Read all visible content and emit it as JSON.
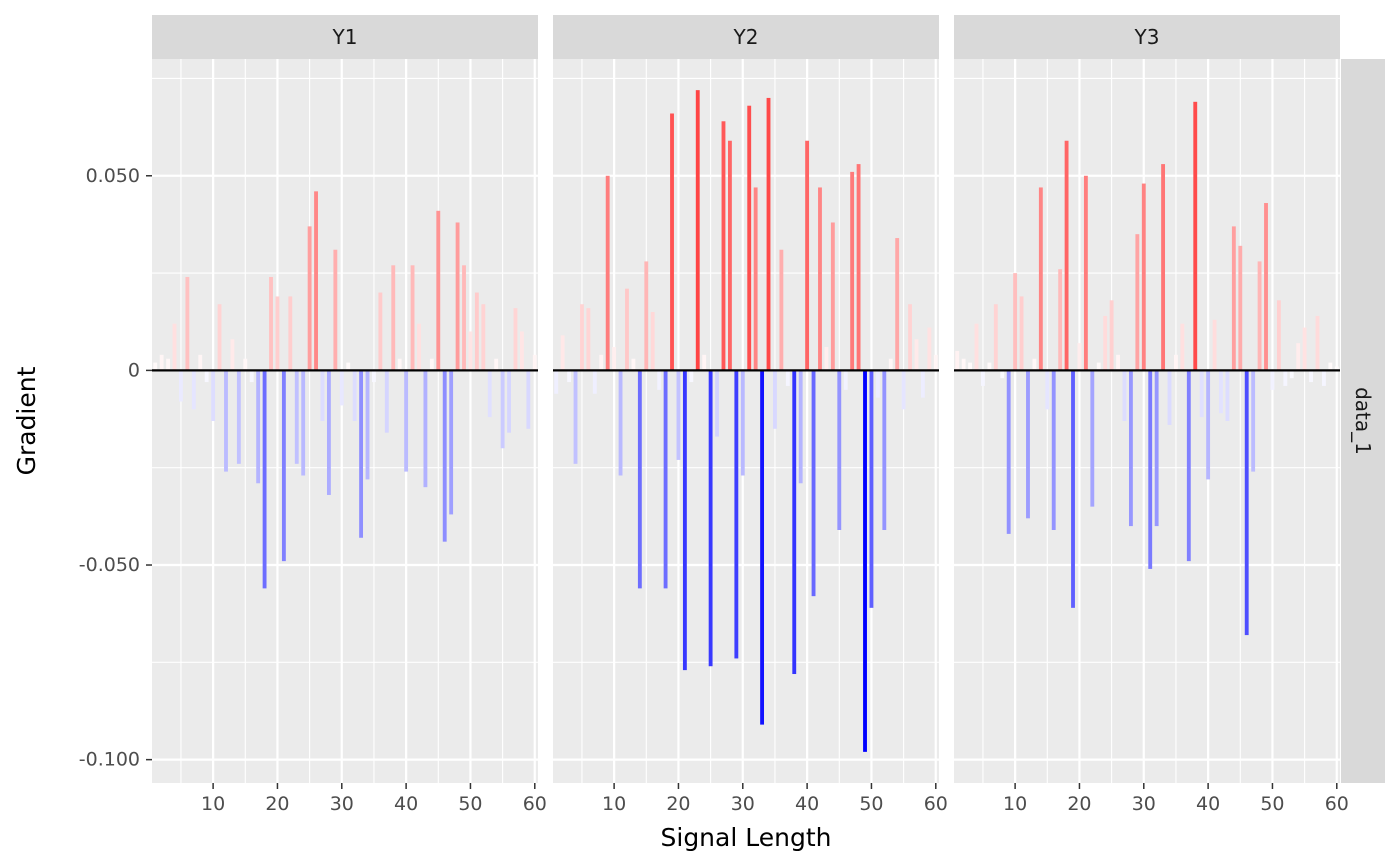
{
  "chart_data": {
    "type": "bar",
    "xlabel": "Signal Length",
    "ylabel": "Gradient",
    "row_facet": "data_1",
    "xlim": [
      0.5,
      60.5
    ],
    "ylim": [
      -0.106,
      0.08
    ],
    "x_ticks": [
      10,
      20,
      30,
      40,
      50,
      60
    ],
    "y_ticks": [
      -0.1,
      -0.05,
      0,
      0.05
    ],
    "y_tick_labels": [
      "-0.100",
      "-0.050",
      "0",
      "0.050"
    ],
    "grid": true,
    "color_scale": {
      "negative": "#0000ff",
      "zero": "#ffffff",
      "positive": "#ff0000",
      "limit": 0.098
    },
    "x": [
      1,
      2,
      3,
      4,
      5,
      6,
      7,
      8,
      9,
      10,
      11,
      12,
      13,
      14,
      15,
      16,
      17,
      18,
      19,
      20,
      21,
      22,
      23,
      24,
      25,
      26,
      27,
      28,
      29,
      30,
      31,
      32,
      33,
      34,
      35,
      36,
      37,
      38,
      39,
      40,
      41,
      42,
      43,
      44,
      45,
      46,
      47,
      48,
      49,
      50,
      51,
      52,
      53,
      54,
      55,
      56,
      57,
      58,
      59,
      60
    ],
    "panels": [
      {
        "name": "Y1",
        "values": [
          0.002,
          0.004,
          0.003,
          0.012,
          -0.008,
          0.024,
          -0.01,
          0.004,
          -0.003,
          -0.013,
          0.017,
          -0.026,
          0.008,
          -0.024,
          0.003,
          -0.003,
          -0.029,
          -0.056,
          0.024,
          0.019,
          -0.049,
          0.019,
          -0.024,
          -0.027,
          0.037,
          0.046,
          -0.013,
          -0.032,
          0.031,
          -0.009,
          0.002,
          -0.013,
          -0.043,
          -0.028,
          -0.003,
          0.02,
          -0.016,
          0.027,
          0.003,
          -0.026,
          0.027,
          0.012,
          -0.03,
          0.003,
          0.041,
          -0.044,
          -0.037,
          0.038,
          0.027,
          0.01,
          0.02,
          0.017,
          -0.012,
          0.003,
          -0.02,
          -0.016,
          0.016,
          0.01,
          -0.015,
          0.004
        ]
      },
      {
        "name": "Y2",
        "values": [
          -0.006,
          0.009,
          -0.003,
          -0.024,
          0.017,
          0.016,
          -0.006,
          0.004,
          0.05,
          0.006,
          -0.027,
          0.021,
          0.003,
          -0.056,
          0.028,
          0.015,
          -0.005,
          -0.056,
          0.066,
          -0.023,
          -0.077,
          -0.003,
          0.072,
          0.004,
          -0.076,
          -0.017,
          0.064,
          0.059,
          -0.074,
          -0.027,
          0.068,
          0.047,
          -0.091,
          0.07,
          -0.015,
          0.031,
          -0.004,
          -0.078,
          -0.029,
          0.059,
          -0.058,
          0.047,
          0.006,
          0.038,
          -0.041,
          -0.005,
          0.051,
          0.053,
          -0.098,
          -0.061,
          -0.007,
          -0.041,
          0.003,
          0.034,
          -0.01,
          0.017,
          0.008,
          -0.007,
          0.011,
          0.004
        ]
      },
      {
        "name": "Y3",
        "values": [
          0.005,
          0.003,
          0.002,
          0.012,
          -0.004,
          0.002,
          0.017,
          -0.002,
          -0.042,
          0.025,
          0.019,
          -0.038,
          0.003,
          0.047,
          -0.01,
          -0.041,
          0.026,
          0.059,
          -0.061,
          0.007,
          0.05,
          -0.035,
          0.002,
          0.014,
          0.018,
          0.004,
          -0.013,
          -0.04,
          0.035,
          0.048,
          -0.051,
          -0.04,
          0.053,
          -0.014,
          0.004,
          0.012,
          -0.049,
          0.069,
          -0.012,
          -0.028,
          0.013,
          -0.011,
          -0.013,
          0.037,
          0.032,
          -0.068,
          -0.026,
          0.028,
          0.043,
          -0.005,
          0.018,
          -0.004,
          -0.002,
          0.007,
          0.011,
          -0.003,
          0.014,
          -0.004,
          0.002,
          0.001
        ]
      }
    ]
  }
}
